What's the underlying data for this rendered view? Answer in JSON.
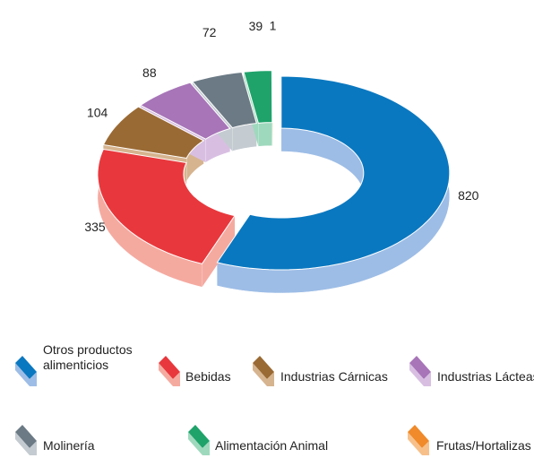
{
  "chart_data": {
    "type": "donut3d",
    "categories": [
      "Otros productos alimenticios",
      "Bebidas",
      "Industrias Cárnicas",
      "Industrias Lácteas",
      "Molinería",
      "Alimentación Animal",
      "Frutas/Hortalizas"
    ],
    "values": [
      820,
      335,
      104,
      88,
      72,
      39,
      1
    ],
    "colors": [
      "#0a78c0",
      "#e8383d",
      "#9a6a34",
      "#a775b8",
      "#6b7a85",
      "#1fa36b",
      "#f08a2a"
    ],
    "side_colors": [
      "#9dbde6",
      "#f5aaa0",
      "#d6b48f",
      "#d8bfe2",
      "#c4cbd1",
      "#9fd9bd",
      "#f7c08a"
    ]
  }
}
